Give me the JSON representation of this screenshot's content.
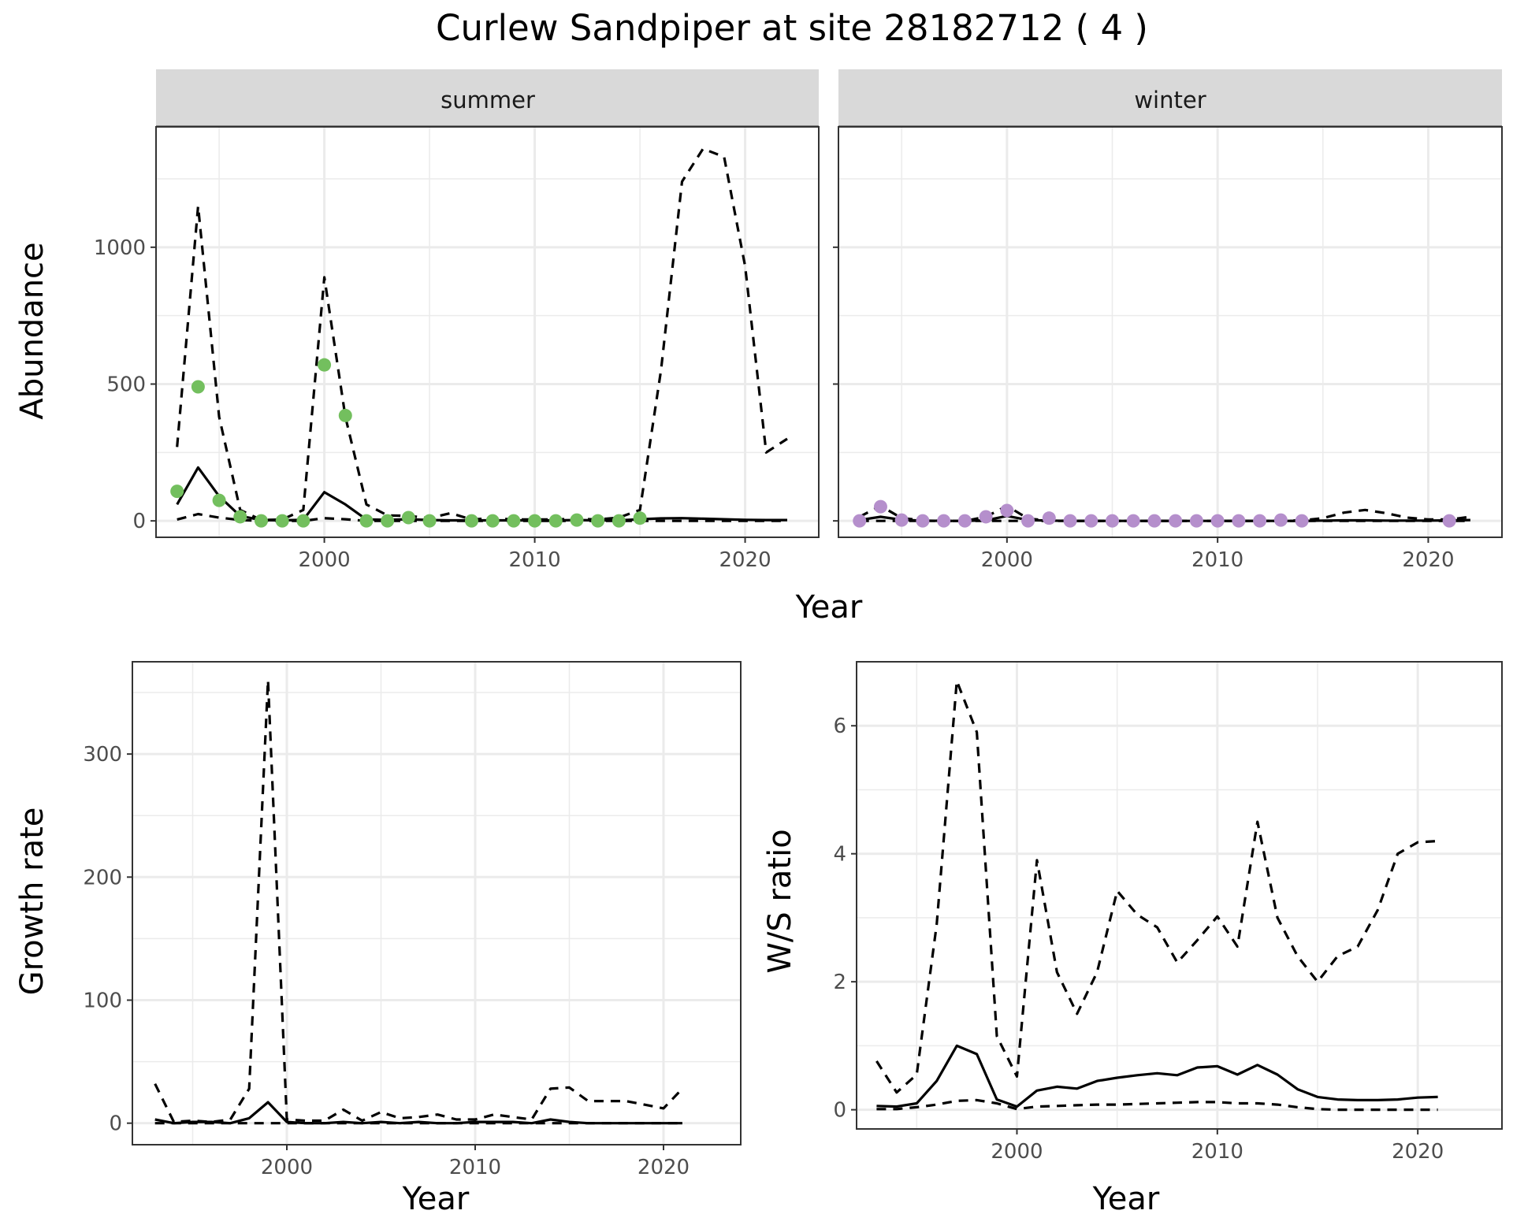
{
  "title": "Curlew Sandpiper at site 28182712 ( 4 )",
  "colors": {
    "summer_points": "#73BF5E",
    "winter_points": "#B58FCC",
    "lines": "#000000"
  },
  "chart_data": [
    {
      "type": "line",
      "facet": "summer",
      "xlabel": "Year",
      "ylabel": "Abundance",
      "xlim": [
        1992,
        2023.5
      ],
      "ylim": [
        -60,
        1440
      ],
      "x_ticks": [
        2000,
        2010,
        2020
      ],
      "y_ticks": [
        0,
        500,
        1000
      ],
      "grid": true,
      "series": [
        {
          "style": "solid",
          "x": [
            1993,
            1994,
            1995,
            1996,
            1997,
            1998,
            1999,
            2000,
            2001,
            2002,
            2003,
            2004,
            2005,
            2006,
            2007,
            2008,
            2009,
            2010,
            2011,
            2012,
            2013,
            2014,
            2015,
            2016,
            2017,
            2018,
            2019,
            2020,
            2021,
            2022
          ],
          "y": [
            60,
            195,
            90,
            18,
            3,
            2,
            4,
            105,
            60,
            5,
            4,
            6,
            3,
            2,
            2,
            2,
            2,
            2,
            2,
            3,
            2,
            2,
            6,
            9,
            10,
            8,
            6,
            4,
            3,
            3
          ]
        },
        {
          "style": "dashed",
          "x": [
            1993,
            1994,
            1995,
            1996,
            1997,
            1998,
            1999,
            2000,
            2001,
            2002,
            2003,
            2004,
            2005,
            2006,
            2007,
            2008,
            2009,
            2010,
            2011,
            2012,
            2013,
            2014,
            2015,
            2016,
            2017,
            2018,
            2019,
            2020,
            2021,
            2022
          ],
          "y": [
            270,
            1150,
            380,
            40,
            3,
            5,
            40,
            890,
            380,
            60,
            20,
            18,
            10,
            28,
            5,
            10,
            5,
            5,
            5,
            8,
            5,
            12,
            40,
            550,
            1240,
            1360,
            1330,
            930,
            250,
            300
          ]
        },
        {
          "style": "dashed",
          "x": [
            1993,
            1994,
            1995,
            1996,
            1997,
            1998,
            1999,
            2000,
            2001,
            2002,
            2003,
            2004,
            2005,
            2006,
            2007,
            2008,
            2009,
            2010,
            2011,
            2012,
            2013,
            2014,
            2015,
            2016,
            2017,
            2018,
            2019,
            2020,
            2021,
            2022
          ],
          "y": [
            5,
            25,
            12,
            3,
            0,
            0,
            0,
            10,
            6,
            0,
            0,
            0,
            0,
            0,
            0,
            0,
            0,
            0,
            0,
            0,
            0,
            0,
            0,
            0,
            0,
            0,
            0,
            0,
            0,
            0
          ]
        },
        {
          "style": "points",
          "x": [
            1993,
            1994,
            1995,
            1996,
            1997,
            1998,
            1999,
            2000,
            2001,
            2002,
            2003,
            2004,
            2005,
            2007,
            2008,
            2009,
            2010,
            2011,
            2012,
            2013,
            2014,
            2015
          ],
          "y": [
            108,
            490,
            75,
            15,
            0,
            0,
            0,
            570,
            385,
            0,
            0,
            12,
            0,
            0,
            0,
            0,
            0,
            0,
            3,
            0,
            0,
            10
          ]
        }
      ]
    },
    {
      "type": "line",
      "facet": "winter",
      "xlabel": "Year",
      "ylabel": "Abundance",
      "xlim": [
        1992,
        2023.5
      ],
      "ylim": [
        -60,
        1440
      ],
      "x_ticks": [
        2000,
        2010,
        2020
      ],
      "y_ticks": [
        0,
        500,
        1000
      ],
      "grid": true,
      "series": [
        {
          "style": "solid",
          "x": [
            1993,
            1994,
            1995,
            1996,
            1997,
            1998,
            1999,
            2000,
            2001,
            2002,
            2003,
            2004,
            2005,
            2006,
            2007,
            2008,
            2009,
            2010,
            2011,
            2012,
            2013,
            2014,
            2015,
            2016,
            2017,
            2018,
            2019,
            2020,
            2021,
            2022
          ],
          "y": [
            3,
            15,
            4,
            1,
            0,
            0,
            2,
            18,
            3,
            1,
            0,
            0,
            0,
            0,
            0,
            0,
            0,
            0,
            0,
            0,
            0,
            0,
            1,
            2,
            2,
            1,
            1,
            1,
            2,
            3
          ]
        },
        {
          "style": "dashed",
          "x": [
            1993,
            1994,
            1995,
            1996,
            1997,
            1998,
            1999,
            2000,
            2001,
            2002,
            2003,
            2004,
            2005,
            2006,
            2007,
            2008,
            2009,
            2010,
            2011,
            2012,
            2013,
            2014,
            2015,
            2016,
            2017,
            2018,
            2019,
            2020,
            2021,
            2022
          ],
          "y": [
            15,
            55,
            10,
            2,
            0,
            0,
            15,
            55,
            8,
            2,
            0,
            0,
            0,
            0,
            0,
            0,
            0,
            0,
            0,
            0,
            0,
            2,
            10,
            30,
            40,
            28,
            12,
            5,
            5,
            15
          ]
        },
        {
          "style": "dashed",
          "x": [
            1993,
            2022
          ],
          "y": [
            0,
            0
          ]
        },
        {
          "style": "points",
          "x": [
            1993,
            1994,
            1995,
            1996,
            1997,
            1998,
            1999,
            2000,
            2001,
            2002,
            2003,
            2004,
            2005,
            2006,
            2007,
            2008,
            2009,
            2010,
            2011,
            2012,
            2013,
            2014,
            2021
          ],
          "y": [
            0,
            52,
            3,
            0,
            0,
            0,
            15,
            38,
            0,
            10,
            0,
            0,
            0,
            0,
            0,
            0,
            0,
            0,
            0,
            0,
            3,
            0,
            0
          ]
        }
      ]
    },
    {
      "type": "line",
      "xlabel": "Year",
      "ylabel": "Growth rate",
      "xlim": [
        1991.8,
        2024.1
      ],
      "ylim": [
        -17.5,
        375
      ],
      "x_ticks": [
        2000,
        2010,
        2020
      ],
      "y_ticks": [
        0,
        100,
        200,
        300
      ],
      "grid": true,
      "series": [
        {
          "style": "solid",
          "x": [
            1993,
            1994,
            1995,
            1996,
            1997,
            1998,
            1999,
            2000,
            2001,
            2002,
            2003,
            2004,
            2005,
            2006,
            2007,
            2008,
            2009,
            2010,
            2011,
            2012,
            2013,
            2014,
            2015,
            2016,
            2017,
            2018,
            2019,
            2020,
            2021
          ],
          "y": [
            3,
            0,
            1,
            1,
            0,
            4,
            17,
            1,
            0,
            0,
            1,
            0,
            1,
            0,
            1,
            0,
            0,
            1,
            1,
            1,
            0,
            3,
            1,
            0,
            0,
            0,
            0,
            0,
            0
          ]
        },
        {
          "style": "dashed",
          "x": [
            1993,
            1994,
            1995,
            1996,
            1997,
            1998,
            1999,
            2000,
            2001,
            2002,
            2003,
            2004,
            2005,
            2006,
            2007,
            2008,
            2009,
            2010,
            2011,
            2012,
            2013,
            2014,
            2015,
            2016,
            2017,
            2018,
            2019,
            2020,
            2021
          ],
          "y": [
            32,
            1,
            2,
            1,
            3,
            28,
            360,
            3,
            2,
            2,
            11,
            2,
            9,
            4,
            5,
            7,
            3,
            3,
            7,
            5,
            3,
            28,
            29,
            18,
            18,
            18,
            15,
            12,
            28
          ]
        },
        {
          "style": "dashed",
          "x": [
            1993,
            1994,
            1995,
            1996,
            1997,
            1998,
            1999,
            2000,
            2001,
            2002,
            2003,
            2004,
            2005,
            2006,
            2007,
            2008,
            2009,
            2010,
            2011,
            2012,
            2013,
            2014,
            2015,
            2016,
            2017,
            2018,
            2019,
            2020,
            2021
          ],
          "y": [
            0,
            0,
            0,
            0,
            0,
            0,
            0,
            0,
            0,
            0,
            0,
            0,
            0,
            0,
            0,
            0,
            0,
            0,
            0,
            0,
            0,
            0,
            0,
            0,
            0,
            0,
            0,
            0,
            0
          ]
        }
      ]
    },
    {
      "type": "line",
      "xlabel": "Year",
      "ylabel": "W/S ratio",
      "xlim": [
        1992,
        2024.2
      ],
      "ylim": [
        -0.3,
        7.0
      ],
      "x_ticks": [
        2000,
        2010,
        2020
      ],
      "y_ticks": [
        0,
        2,
        4,
        6
      ],
      "grid": true,
      "series": [
        {
          "style": "solid",
          "x": [
            1993,
            1994,
            1995,
            1996,
            1997,
            1998,
            1999,
            2000,
            2001,
            2002,
            2003,
            2004,
            2005,
            2006,
            2007,
            2008,
            2009,
            2010,
            2011,
            2012,
            2013,
            2014,
            2015,
            2016,
            2017,
            2018,
            2019,
            2020,
            2021
          ],
          "y": [
            0.06,
            0.05,
            0.1,
            0.45,
            1.0,
            0.87,
            0.16,
            0.05,
            0.3,
            0.36,
            0.33,
            0.45,
            0.5,
            0.54,
            0.57,
            0.54,
            0.66,
            0.68,
            0.55,
            0.7,
            0.55,
            0.32,
            0.2,
            0.16,
            0.15,
            0.15,
            0.16,
            0.19,
            0.2
          ]
        },
        {
          "style": "dashed",
          "x": [
            1993,
            1994,
            1995,
            1996,
            1997,
            1998,
            1999,
            2000,
            2001,
            2002,
            2003,
            2004,
            2005,
            2006,
            2007,
            2008,
            2009,
            2010,
            2011,
            2012,
            2013,
            2014,
            2015,
            2016,
            2017,
            2018,
            2019,
            2020,
            2021
          ],
          "y": [
            0.76,
            0.27,
            0.55,
            2.9,
            6.7,
            5.9,
            1.15,
            0.52,
            3.9,
            2.15,
            1.5,
            2.15,
            3.42,
            3.05,
            2.85,
            2.3,
            2.65,
            3.02,
            2.55,
            4.5,
            3.0,
            2.4,
            2.0,
            2.4,
            2.55,
            3.12,
            4.0,
            4.18,
            4.2
          ]
        },
        {
          "style": "dashed",
          "x": [
            1993,
            1994,
            1995,
            1996,
            1997,
            1998,
            1999,
            2000,
            2001,
            2002,
            2003,
            2004,
            2005,
            2006,
            2007,
            2008,
            2009,
            2010,
            2011,
            2012,
            2013,
            2014,
            2015,
            2016,
            2017,
            2018,
            2019,
            2020,
            2021
          ],
          "y": [
            0.01,
            0.01,
            0.04,
            0.08,
            0.14,
            0.15,
            0.1,
            0.01,
            0.05,
            0.06,
            0.07,
            0.08,
            0.08,
            0.09,
            0.1,
            0.11,
            0.12,
            0.12,
            0.1,
            0.1,
            0.08,
            0.04,
            0.01,
            0.0,
            0.0,
            0.0,
            0.0,
            0.0,
            0.0
          ]
        }
      ]
    }
  ]
}
